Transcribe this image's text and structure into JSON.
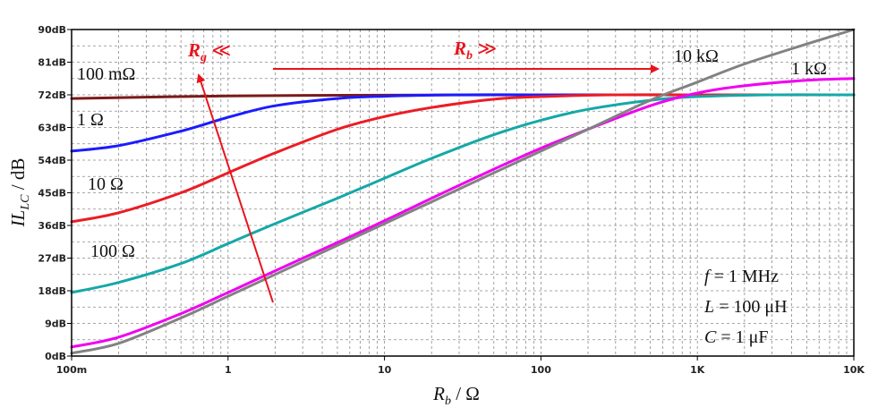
{
  "chart_data": {
    "type": "line",
    "x_scale": "log",
    "x_range": [
      0.1,
      10000
    ],
    "y_range": [
      0,
      90
    ],
    "grid": true,
    "xlabel": "R_b / Ω",
    "ylabel": "IL_LC / dB",
    "x_ticks": [
      {
        "value": 0.1,
        "label": "100m"
      },
      {
        "value": 1,
        "label": "1"
      },
      {
        "value": 10,
        "label": "10"
      },
      {
        "value": 100,
        "label": "100"
      },
      {
        "value": 1000,
        "label": "1K"
      },
      {
        "value": 10000,
        "label": "10K"
      }
    ],
    "y_ticks": [
      {
        "value": 0,
        "label": "0dB"
      },
      {
        "value": 9,
        "label": "9dB"
      },
      {
        "value": 18,
        "label": "18dB"
      },
      {
        "value": 27,
        "label": "27dB"
      },
      {
        "value": 36,
        "label": "36dB"
      },
      {
        "value": 45,
        "label": "45dB"
      },
      {
        "value": 54,
        "label": "54dB"
      },
      {
        "value": 63,
        "label": "63dB"
      },
      {
        "value": 72,
        "label": "72dB"
      },
      {
        "value": 81,
        "label": "81dB"
      },
      {
        "value": 90,
        "label": "90dB"
      }
    ],
    "series": [
      {
        "name": "100 mΩ",
        "color": "#7b1a1a",
        "x": [
          0.1,
          1,
          10,
          100,
          1000,
          10000
        ],
        "y": [
          71,
          71.7,
          71.9,
          72,
          72,
          72
        ]
      },
      {
        "name": "1 Ω",
        "color": "#1c1cff",
        "x": [
          0.1,
          0.2,
          0.5,
          1,
          2,
          5,
          10,
          30,
          100,
          1000,
          10000
        ],
        "y": [
          56.5,
          58,
          62,
          65.8,
          69,
          71,
          71.6,
          72,
          72,
          72,
          72
        ]
      },
      {
        "name": "10 Ω",
        "color": "#ec1c24",
        "x": [
          0.1,
          0.2,
          0.5,
          1,
          2,
          5,
          10,
          20,
          50,
          100,
          300,
          1000,
          10000
        ],
        "y": [
          37,
          39.5,
          45,
          50.5,
          56,
          62.5,
          66,
          68.5,
          70.8,
          71.5,
          72,
          72,
          72
        ]
      },
      {
        "name": "100 Ω",
        "color": "#14a8a8",
        "x": [
          0.1,
          0.2,
          0.5,
          1,
          2,
          5,
          10,
          20,
          50,
          100,
          200,
          500,
          1000,
          3000,
          10000
        ],
        "y": [
          17.5,
          20.3,
          25.5,
          31,
          36.5,
          43.5,
          49,
          54.5,
          61,
          65,
          68,
          70.5,
          71.5,
          72,
          72
        ]
      },
      {
        "name": "1 kΩ",
        "color": "#f000f0",
        "x": [
          0.1,
          0.2,
          0.5,
          1,
          2,
          5,
          10,
          20,
          50,
          100,
          200,
          500,
          1000,
          2000,
          5000,
          10000
        ],
        "y": [
          2.5,
          5.2,
          11.7,
          17.5,
          23.5,
          31.3,
          37.3,
          43.5,
          51.5,
          57.3,
          62.5,
          69,
          72.5,
          74.5,
          76,
          76.5
        ]
      },
      {
        "name": "10 kΩ",
        "color": "#828282",
        "x": [
          0.1,
          0.2,
          0.5,
          1,
          2,
          5,
          10,
          20,
          50,
          100,
          200,
          500,
          1000,
          2000,
          5000,
          10000
        ],
        "y": [
          0.8,
          3.5,
          10.5,
          16.5,
          22.5,
          30.5,
          36.5,
          42.5,
          50.5,
          56.5,
          62.5,
          70.5,
          75.5,
          80.5,
          86,
          90
        ]
      }
    ],
    "annotations": {
      "rg_arrow_label": "R_g ≪",
      "rb_arrow_label": "R_b ≫",
      "params": [
        "f = 1 MHz",
        "L = 100 μH",
        "C = 1 μF"
      ]
    }
  },
  "labels": {
    "ylabel_main": "IL",
    "ylabel_sub": "LC",
    "ylabel_rest": " / dB",
    "xlabel_main": "R",
    "xlabel_sub": "b",
    "xlabel_rest": " / Ω",
    "rg_main": "R",
    "rg_sub": "g",
    "rg_rest": " ≪",
    "rb_main": "R",
    "rb_sub": "b",
    "rb_rest": " ≫",
    "curve_100m": "100 mΩ",
    "curve_1": "1 Ω",
    "curve_10": "10 Ω",
    "curve_100": "100 Ω",
    "curve_1k": "1 kΩ",
    "curve_10k": "10 kΩ",
    "param_f_var": "f",
    "param_f_val": " = 1 MHz",
    "param_L_var": "L",
    "param_L_val": " = 100 μH",
    "param_C_var": "C",
    "param_C_val": " = 1 μF"
  },
  "colors": {
    "frame": "#000000",
    "grid": "#8a8a8a",
    "arrow": "#e8141c"
  }
}
